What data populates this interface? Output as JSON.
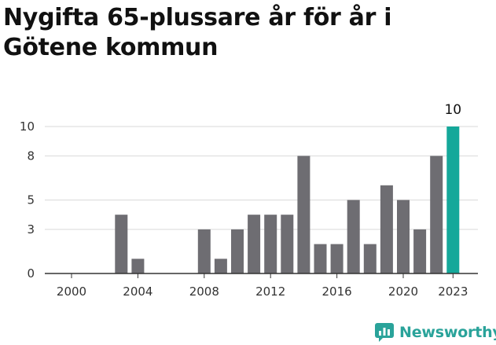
{
  "header": {
    "title": "Nygifta 65-plussare år för år i Götene kommun"
  },
  "chart_data": {
    "type": "bar",
    "title": "Nygifta 65-plussare år för år i Götene kommun",
    "xlabel": "",
    "ylabel": "",
    "x": [
      2000,
      2001,
      2002,
      2003,
      2004,
      2005,
      2006,
      2007,
      2008,
      2009,
      2010,
      2011,
      2012,
      2013,
      2014,
      2015,
      2016,
      2017,
      2018,
      2019,
      2020,
      2021,
      2022,
      2023
    ],
    "values": [
      0,
      0,
      0,
      4,
      1,
      0,
      0,
      0,
      3,
      1,
      3,
      4,
      4,
      4,
      8,
      2,
      2,
      5,
      2,
      6,
      5,
      3,
      8,
      10
    ],
    "ylim": [
      0,
      10
    ],
    "yticks": [
      0,
      3,
      5,
      8,
      10
    ],
    "xticks": [
      "2000",
      "2004",
      "2008",
      "2012",
      "2016",
      "2020",
      "2023"
    ],
    "highlight_label": "10",
    "grid": true,
    "bar_color": "#6e6d72",
    "highlight_color": "#14a89a"
  },
  "brand": {
    "name": "Newsworthy",
    "color": "#2aa39a"
  }
}
